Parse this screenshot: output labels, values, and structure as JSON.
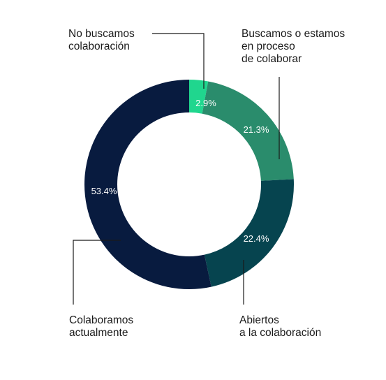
{
  "chart_data": {
    "type": "pie",
    "variant": "donut",
    "slices": [
      {
        "label": [
          "No buscamos",
          "colaboración"
        ],
        "value": 2.9,
        "display": "2.9%",
        "color": "#20d68e"
      },
      {
        "label": [
          "Buscamos o estamos",
          "en proceso",
          "de colaborar"
        ],
        "value": 21.3,
        "display": "21.3%",
        "color": "#2a8c6c"
      },
      {
        "label": [
          "Abiertos",
          "a la colaboración"
        ],
        "value": 22.4,
        "display": "22.4%",
        "color": "#06444f"
      },
      {
        "label": [
          "Colaboramos",
          "actualmente"
        ],
        "value": 53.4,
        "display": "53.4%",
        "color": "#081b3f"
      }
    ],
    "start_angle_deg": 0,
    "direction": "clockwise",
    "legend": "none"
  }
}
